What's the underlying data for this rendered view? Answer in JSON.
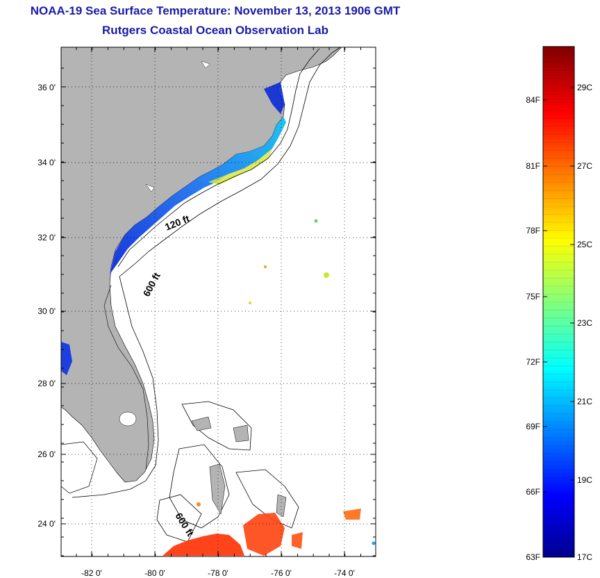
{
  "title": "NOAA-19 Sea Surface Temperature:  November 13, 2013 1906 GMT",
  "subtitle": "Rutgers Coastal Ocean Observation Lab",
  "map": {
    "lon_ticks": [
      "-82 0'",
      "-80 0'",
      "-78 0'",
      "-76 0'",
      "-74 0'"
    ],
    "lat_ticks": [
      "36 0'",
      "34 0'",
      "32 0'",
      "30 0'",
      "28 0'",
      "26 0'",
      "24 0'"
    ],
    "contour_labels": [
      "120 ft",
      "600 ft",
      "600 ft"
    ],
    "land_color": "#b4b4b4",
    "grid": "dotted"
  },
  "colorbar": {
    "fahrenheit_labels": [
      "84F",
      "81F",
      "78F",
      "75F",
      "72F",
      "69F",
      "66F",
      "63F"
    ],
    "celsius_labels": [
      "29C",
      "27C",
      "25C",
      "23C",
      "21C",
      "19C",
      "17C"
    ],
    "colormap": "jet"
  }
}
